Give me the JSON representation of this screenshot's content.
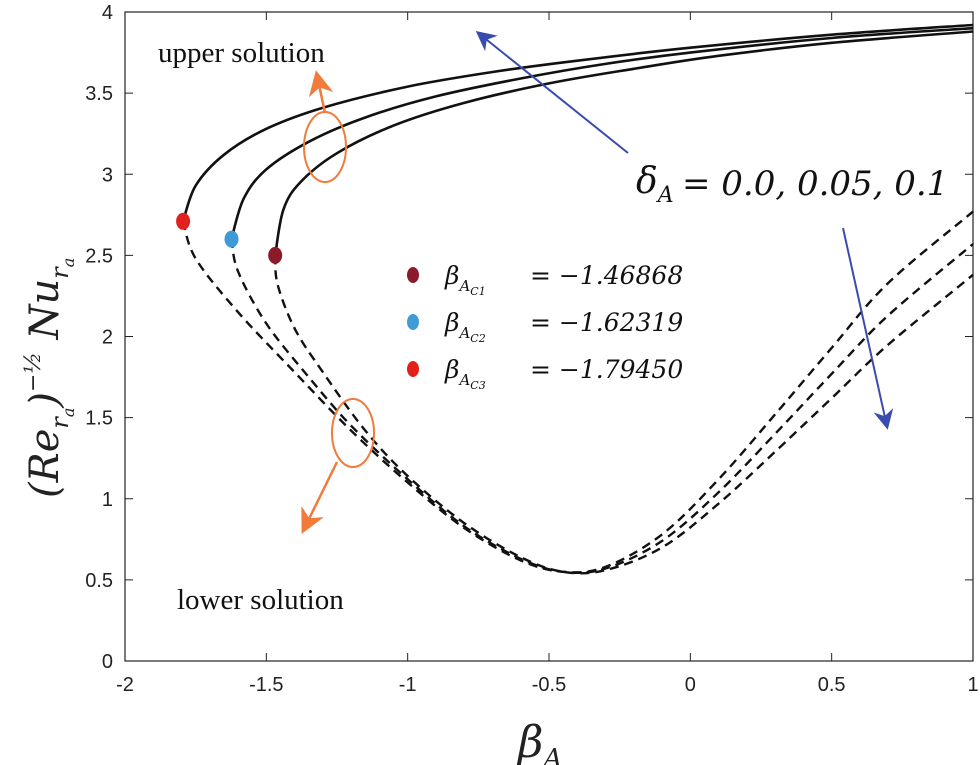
{
  "chart_data": {
    "type": "line",
    "title": "",
    "xlabel": "β_A",
    "ylabel": "(Re_{r_a})^{-1/2} Nu_{r_a}",
    "xlim": [
      -2,
      1
    ],
    "ylim": [
      0,
      4
    ],
    "x_ticks": [
      "-2",
      "-1.5",
      "-1",
      "-0.5",
      "0",
      "0.5",
      "1"
    ],
    "y_ticks": [
      "0",
      "0.5",
      "1",
      "1.5",
      "2",
      "2.5",
      "3",
      "3.5",
      "4"
    ],
    "grid": false,
    "series": [
      {
        "name": "δ_A = 0.0",
        "critical_point": {
          "x": -1.7945,
          "y": 2.71
        },
        "upper": {
          "style": "solid",
          "x": [
            -1.7945,
            -1.75,
            -1.65,
            -1.5,
            -1.3,
            -1.0,
            -0.7,
            -0.4,
            0.0,
            0.5,
            1.0
          ],
          "y": [
            2.71,
            2.93,
            3.12,
            3.28,
            3.41,
            3.54,
            3.63,
            3.7,
            3.78,
            3.86,
            3.92
          ]
        },
        "lower": {
          "style": "dashed",
          "x": [
            -1.7945,
            -1.75,
            -1.6,
            -1.4,
            -1.2,
            -1.0,
            -0.8,
            -0.6,
            -0.45,
            -0.3,
            -0.1,
            0.1,
            0.3,
            0.5,
            0.7,
            1.0
          ],
          "y": [
            2.71,
            2.48,
            2.15,
            1.78,
            1.42,
            1.1,
            0.82,
            0.62,
            0.55,
            0.58,
            0.78,
            1.12,
            1.52,
            1.93,
            2.33,
            2.77
          ]
        }
      },
      {
        "name": "δ_A = 0.05",
        "critical_point": {
          "x": -1.62319,
          "y": 2.6
        },
        "upper": {
          "style": "solid",
          "x": [
            -1.62319,
            -1.58,
            -1.5,
            -1.35,
            -1.15,
            -0.9,
            -0.6,
            -0.3,
            0.0,
            0.5,
            1.0
          ],
          "y": [
            2.6,
            2.85,
            3.03,
            3.2,
            3.35,
            3.48,
            3.59,
            3.68,
            3.75,
            3.84,
            3.9
          ]
        },
        "lower": {
          "style": "dashed",
          "x": [
            -1.62319,
            -1.6,
            -1.5,
            -1.35,
            -1.2,
            -1.0,
            -0.8,
            -0.6,
            -0.45,
            -0.3,
            -0.1,
            0.1,
            0.3,
            0.5,
            0.7,
            1.0
          ],
          "y": [
            2.6,
            2.4,
            2.08,
            1.75,
            1.45,
            1.12,
            0.83,
            0.63,
            0.55,
            0.57,
            0.74,
            1.04,
            1.4,
            1.77,
            2.13,
            2.57
          ]
        }
      },
      {
        "name": "δ_A = 0.1",
        "critical_point": {
          "x": -1.46868,
          "y": 2.5
        },
        "upper": {
          "style": "solid",
          "x": [
            -1.46868,
            -1.44,
            -1.38,
            -1.25,
            -1.05,
            -0.8,
            -0.5,
            -0.2,
            0.1,
            0.5,
            1.0
          ],
          "y": [
            2.5,
            2.78,
            2.95,
            3.13,
            3.3,
            3.44,
            3.56,
            3.65,
            3.73,
            3.81,
            3.88
          ]
        },
        "lower": {
          "style": "dashed",
          "x": [
            -1.46868,
            -1.46,
            -1.4,
            -1.3,
            -1.15,
            -1.0,
            -0.8,
            -0.6,
            -0.45,
            -0.3,
            -0.1,
            0.1,
            0.3,
            0.5,
            0.7,
            1.0
          ],
          "y": [
            2.5,
            2.32,
            2.05,
            1.78,
            1.42,
            1.14,
            0.85,
            0.64,
            0.55,
            0.56,
            0.7,
            0.97,
            1.29,
            1.62,
            1.95,
            2.38
          ]
        }
      }
    ],
    "annotations": {
      "upper_solution": "upper solution",
      "lower_solution": "lower solution",
      "delta_label": "δ_A = 0.0, 0.05, 0.1"
    },
    "legend": [
      {
        "label": "β_{A_{C1}} = −1.46868",
        "color": "#8b1a2b"
      },
      {
        "label": "β_{A_{C2}} = −1.62319",
        "color": "#3e9bd6"
      },
      {
        "label": "β_{A_{C3}} = −1.79450",
        "color": "#e3211c"
      }
    ],
    "colors": {
      "curve": "#111111",
      "annotation_orange": "#f07b3a",
      "annotation_blue": "#3a4bb0"
    }
  },
  "text": {
    "legend_labels": [
      "= −1.46868",
      "= −1.62319",
      "= −1.79450"
    ],
    "delta_values": "= 0.0, 0.05, 0.1",
    "upper_solution": "upper solution",
    "lower_solution": "lower solution"
  }
}
